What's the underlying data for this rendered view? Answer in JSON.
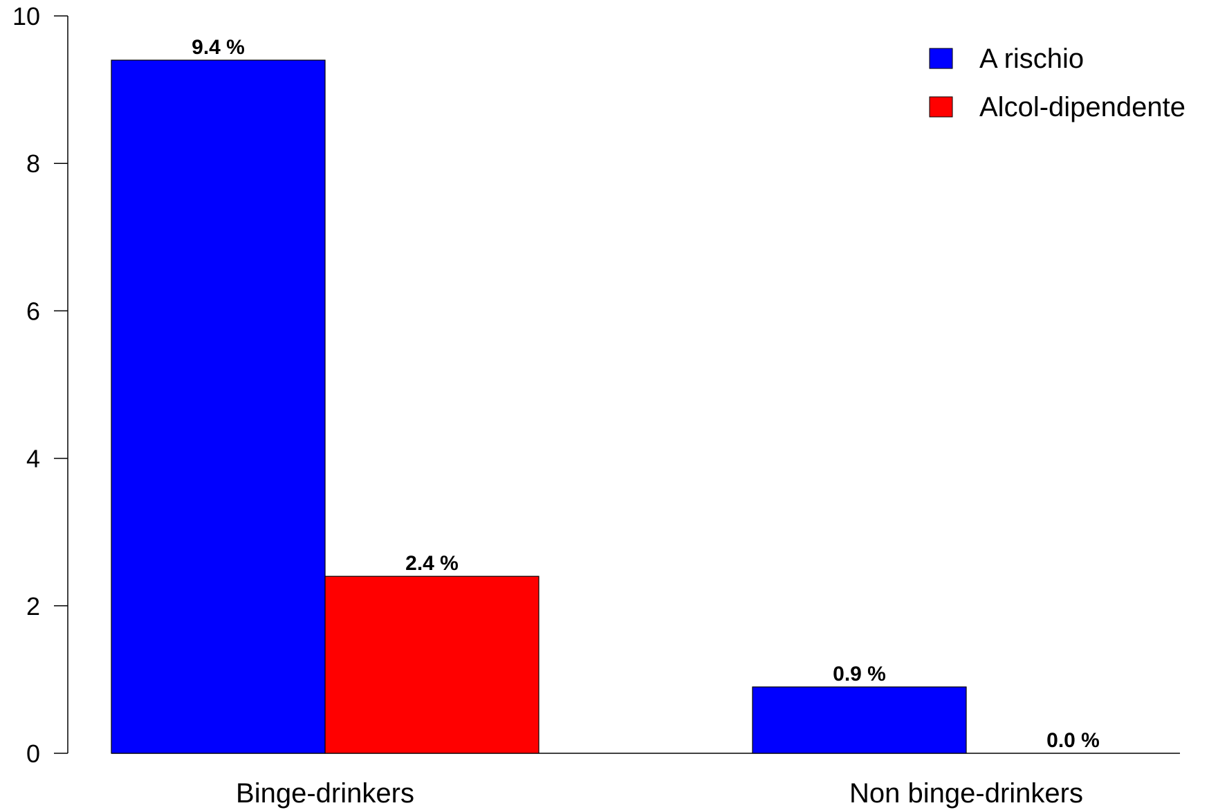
{
  "chart_data": {
    "type": "bar",
    "title": "",
    "xlabel": "",
    "ylabel": "",
    "ylim": [
      0,
      10
    ],
    "yticks": [
      "0",
      "2",
      "4",
      "6",
      "8",
      "10"
    ],
    "categories": [
      "Binge-drinkers",
      "Non binge-drinkers"
    ],
    "series": [
      {
        "name": "A rischio",
        "color": "#0000ff",
        "values": [
          9.4,
          0.9
        ],
        "labels": [
          "9.4 %",
          "0.9 %"
        ]
      },
      {
        "name": "Alcol-dipendente",
        "color": "#ff0000",
        "values": [
          2.4,
          0.0
        ],
        "labels": [
          "2.4 %",
          "0.0 %"
        ]
      }
    ],
    "legend_position": "top-right",
    "grid": false
  }
}
